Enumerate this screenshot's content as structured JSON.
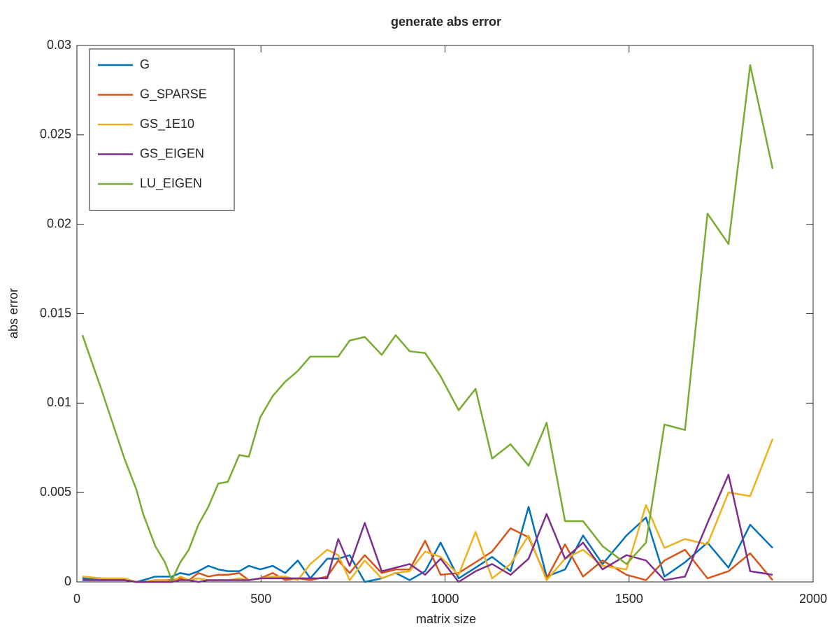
{
  "chart_data": {
    "type": "line",
    "title": "generate abs error",
    "xlabel": "matrix size",
    "ylabel": "abs error",
    "xlim": [
      0,
      2000
    ],
    "xticks": [
      0,
      500,
      1000,
      1500,
      2000
    ],
    "ylim": [
      0,
      0.03
    ],
    "yticks": [
      0,
      0.005,
      0.01,
      0.015,
      0.02,
      0.025,
      0.03
    ],
    "grid": false,
    "legend": "upper left",
    "x": [
      15,
      66,
      129,
      161,
      180,
      213,
      239,
      258,
      281,
      304,
      330,
      357,
      384,
      410,
      441,
      467,
      498,
      532,
      566,
      600,
      634,
      680,
      710,
      741,
      782,
      828,
      866,
      904,
      946,
      988,
      1037,
      1083,
      1128,
      1178,
      1227,
      1276,
      1326,
      1375,
      1428,
      1493,
      1546,
      1596,
      1652,
      1713,
      1770,
      1829,
      1890
    ],
    "series": [
      {
        "name": "G",
        "color": "#0072bd",
        "values": [
          0.0002,
          0.0001,
          0.0001,
          0,
          0.0001,
          0.0003,
          0.0003,
          0.0003,
          0.0005,
          0.0004,
          0.0006,
          0.0009,
          0.0007,
          0.0006,
          0.0006,
          0.0009,
          0.0007,
          0.0009,
          0.0005,
          0.0012,
          0.0002,
          0.0013,
          0.0013,
          0.0015,
          0,
          0.0002,
          0.0005,
          0.0001,
          0.0006,
          0.0022,
          0.0002,
          0.0008,
          0.0014,
          0.0006,
          0.0042,
          0.0003,
          0.0007,
          0.0026,
          0.001,
          0.0026,
          0.0036,
          0.0003,
          0.0011,
          0.0022,
          0.0008,
          0.0032,
          0.0019
        ]
      },
      {
        "name": "G_SPARSE",
        "color": "#d95319",
        "values": [
          0.0003,
          0.0002,
          0.0001,
          0,
          0,
          0.0001,
          0.0001,
          0.0001,
          0.0002,
          0.0001,
          0.0005,
          0.0003,
          0.0004,
          0.0004,
          0.0005,
          0.0001,
          0.0002,
          0.0005,
          0.0001,
          0.0002,
          0.0001,
          0.0003,
          0.0012,
          0.0005,
          0.0015,
          0.0005,
          0.0007,
          0.0007,
          0.0023,
          0.0004,
          0.0005,
          0.0011,
          0.0017,
          0.003,
          0.0025,
          0.0002,
          0.0021,
          0.0003,
          0.0012,
          0.0004,
          0.0001,
          0.0012,
          0.0018,
          0.0002,
          0.0006,
          0.0016,
          0.0001
        ]
      },
      {
        "name": "GS_1E10",
        "color": "#edb120",
        "values": [
          0.0003,
          0.0002,
          0.0002,
          0,
          0,
          0.0001,
          0.0001,
          0,
          0.0003,
          0.0001,
          0.0002,
          0.0001,
          0.0001,
          0.0001,
          0.0002,
          0.0001,
          0.0002,
          0.0003,
          0.0003,
          0.0001,
          0.001,
          0.0018,
          0.0015,
          0.0001,
          0.0012,
          0.0002,
          0.0005,
          0.0006,
          0.0017,
          0.0014,
          0.0004,
          0.0028,
          0.0002,
          0.001,
          0.0026,
          0.0001,
          0.0013,
          0.0018,
          0.0009,
          0.0007,
          0.0043,
          0.0019,
          0.0024,
          0.0021,
          0.005,
          0.0048,
          0.008
        ]
      },
      {
        "name": "GS_EIGEN",
        "color": "#7e2f8e",
        "values": [
          0.0001,
          0.0001,
          0.0001,
          0,
          0,
          0,
          0,
          0,
          0.0001,
          0.0001,
          0,
          0.0001,
          0.0001,
          0.0001,
          0.0001,
          0.0001,
          0.0002,
          0.0002,
          0.0002,
          0.0002,
          0.0002,
          0.0002,
          0.0024,
          0.0009,
          0.0033,
          0.0006,
          0.0008,
          0.001,
          0.0004,
          0.0013,
          0,
          0.0006,
          0.001,
          0.0004,
          0.0013,
          0.0038,
          0.0013,
          0.0022,
          0.0007,
          0.0015,
          0.0012,
          0.0001,
          0.0003,
          0.0033,
          0.006,
          0.0006,
          0.0004
        ]
      },
      {
        "name": "LU_EIGEN",
        "color": "#77ac30",
        "values": [
          0.0138,
          0.0108,
          0.0069,
          0.0052,
          0.0038,
          0.002,
          0.0011,
          0.0001,
          0.0011,
          0.0018,
          0.0032,
          0.0042,
          0.0055,
          0.0056,
          0.0071,
          0.007,
          0.0092,
          0.0104,
          0.0112,
          0.0118,
          0.0126,
          0.0126,
          0.0126,
          0.0135,
          0.0137,
          0.0127,
          0.0138,
          0.0129,
          0.0128,
          0.0115,
          0.0096,
          0.0108,
          0.0069,
          0.0077,
          0.0065,
          0.0089,
          0.0034,
          0.0034,
          0.002,
          0.001,
          0.0022,
          0.0088,
          0.0085,
          0.0206,
          0.0189,
          0.0289,
          0.0231
        ]
      }
    ]
  }
}
